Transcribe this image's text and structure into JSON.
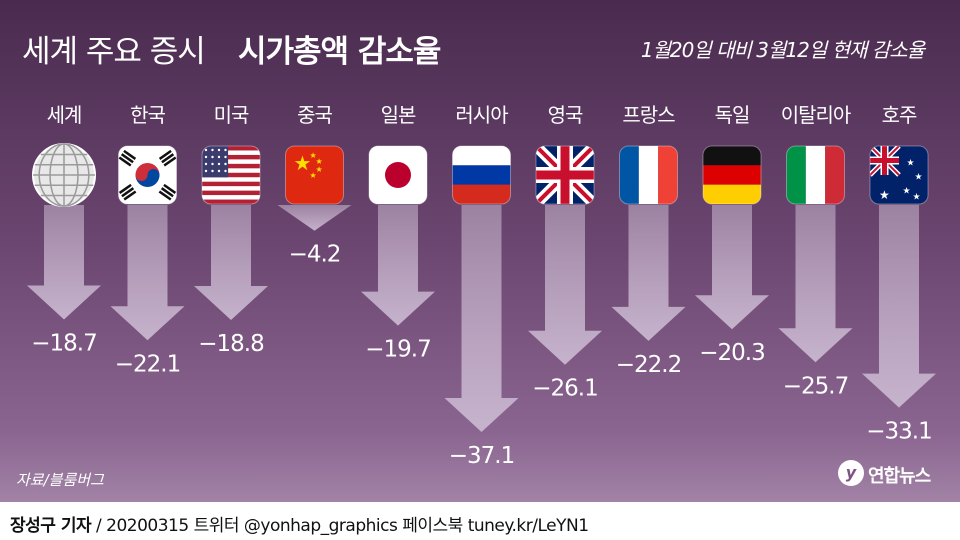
{
  "header": {
    "title_light": "세계 주요 증시",
    "title_bold": "시가총액 감소율",
    "subtitle": "1월20일 대비 3월12일 현재 감소율"
  },
  "source": "자료/블룸버그",
  "logo": {
    "symbol": "y",
    "text": "연합뉴스"
  },
  "footer": {
    "reporter": "장성구 기자",
    "rest": " / 20200315  트위터 @yonhap_graphics  페이스북 tuney.kr/LeYN1"
  },
  "colors": {
    "arrow": "#c9b7cf",
    "background_top": "#4a2b4f",
    "background_bottom": "#a283a6"
  },
  "chart_data": {
    "type": "bar",
    "title": "세계 주요 증시 시가총액 감소율",
    "subtitle": "1월20일 대비 3월12일 현재 감소율",
    "categories": [
      "세계",
      "한국",
      "미국",
      "중국",
      "일본",
      "러시아",
      "영국",
      "프랑스",
      "독일",
      "이탈리아",
      "호주"
    ],
    "values": [
      -18.7,
      -22.1,
      -18.8,
      -4.2,
      -19.7,
      -37.1,
      -26.1,
      -22.2,
      -20.3,
      -25.7,
      -33.1
    ],
    "labels": [
      "−18.7",
      "−22.1",
      "−18.8",
      "−4.2",
      "−19.7",
      "−37.1",
      "−26.1",
      "−22.2",
      "−20.3",
      "−25.7",
      "−33.1"
    ],
    "icons": [
      "globe-icon",
      "south-korea-flag-icon",
      "usa-flag-icon",
      "china-flag-icon",
      "japan-flag-icon",
      "russia-flag-icon",
      "uk-flag-icon",
      "france-flag-icon",
      "germany-flag-icon",
      "italy-flag-icon",
      "australia-flag-icon"
    ],
    "xlabel": "",
    "ylabel": "",
    "grid": false,
    "legend": "none"
  }
}
